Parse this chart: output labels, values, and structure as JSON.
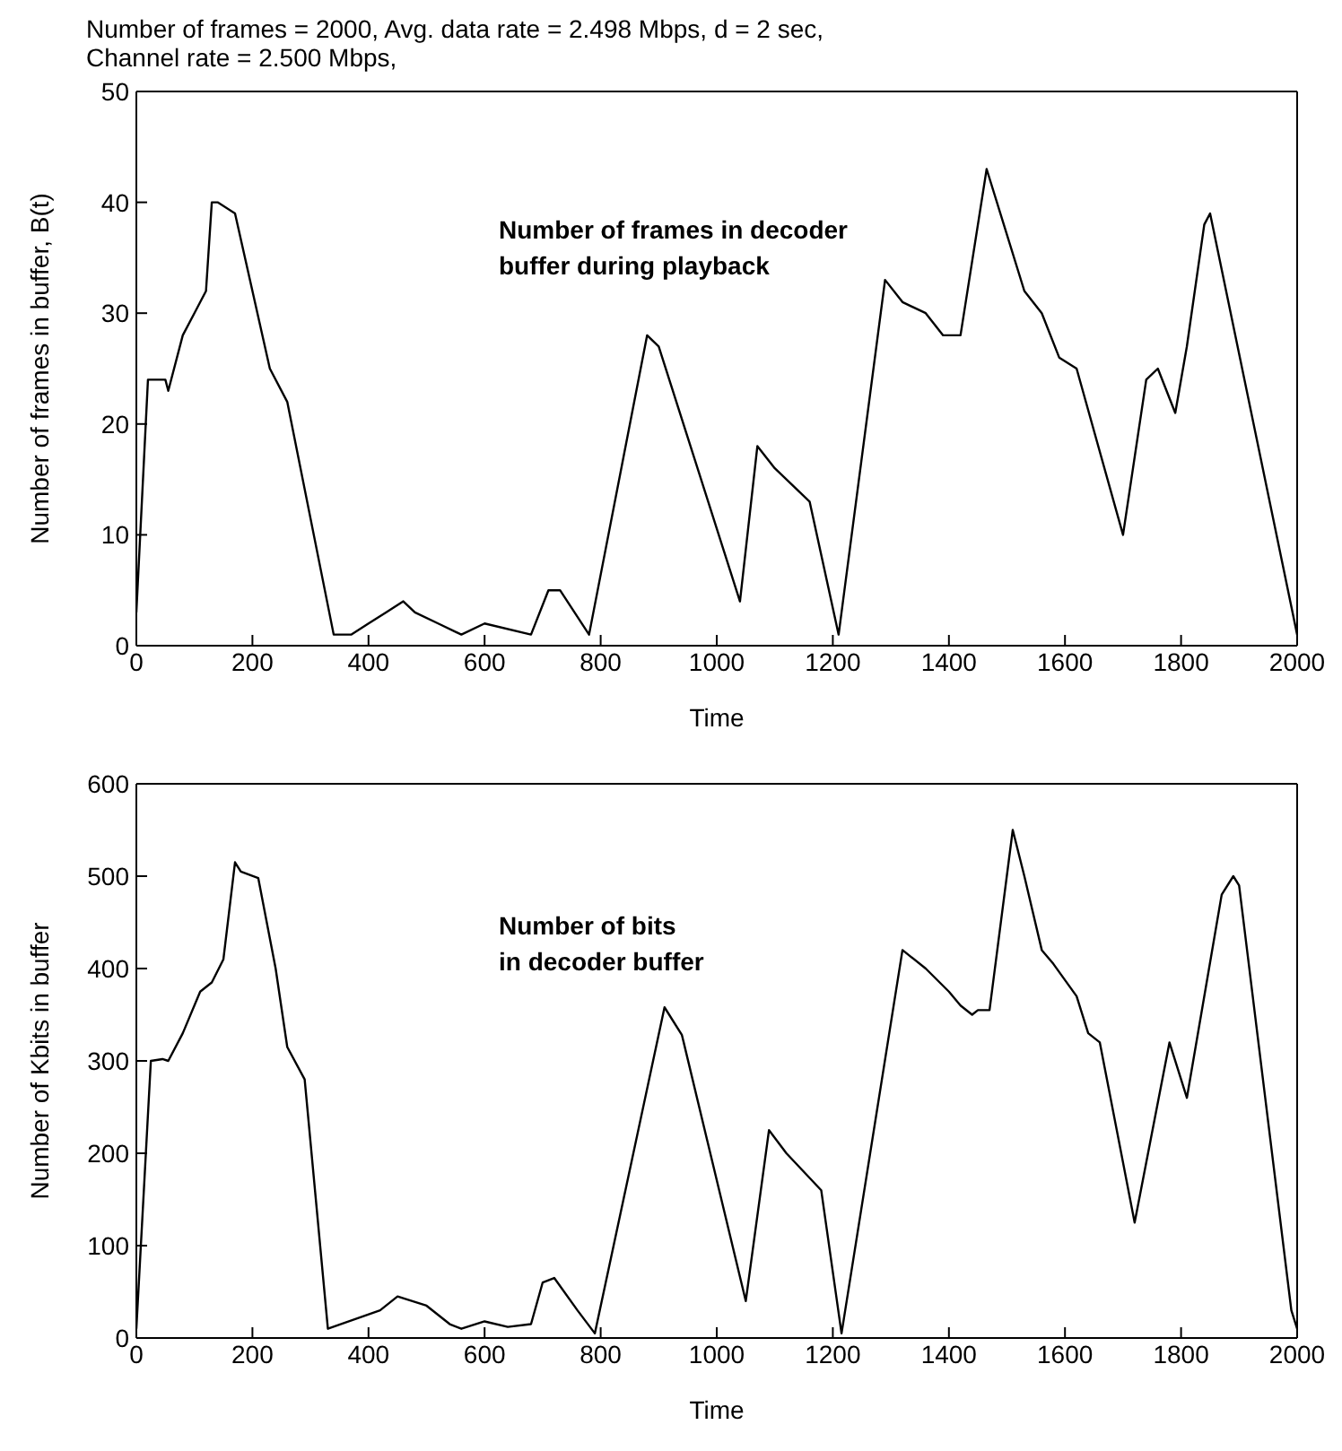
{
  "chart_data": [
    {
      "type": "line",
      "title": "Number of frames = 2000, Avg. data rate = 2.498 Mbps, d = 2 sec,",
      "subtitle": "Channel rate = 2.500 Mbps,",
      "xlabel": "Time",
      "ylabel": "Number of frames in buffer, B(t)",
      "annotations": [
        "Number of frames in decoder\nbuffer during playback"
      ],
      "grid": false,
      "legend": false,
      "marker": "none",
      "line_style": "solid",
      "x": [
        0,
        20,
        50,
        55,
        80,
        100,
        120,
        130,
        140,
        170,
        230,
        260,
        340,
        370,
        400,
        430,
        460,
        480,
        520,
        560,
        600,
        680,
        710,
        730,
        780,
        880,
        900,
        1040,
        1070,
        1100,
        1160,
        1210,
        1290,
        1320,
        1360,
        1390,
        1420,
        1465,
        1530,
        1560,
        1590,
        1620,
        1700,
        1740,
        1760,
        1790,
        1810,
        1840,
        1850,
        2000
      ],
      "series": [
        {
          "color": "#000000",
          "values": [
            3,
            24,
            24,
            23,
            28,
            30,
            32,
            40,
            40,
            39,
            25,
            22,
            1,
            1,
            2,
            3,
            4,
            3,
            2,
            1,
            2,
            1,
            5,
            5,
            1,
            28,
            27,
            4,
            18,
            16,
            13,
            1,
            33,
            31,
            30,
            28,
            28,
            43,
            32,
            30,
            26,
            25,
            10,
            24,
            25,
            21,
            27,
            38,
            39,
            1
          ]
        }
      ],
      "xlim": [
        0,
        2000
      ],
      "xticks": [
        0,
        200,
        400,
        600,
        800,
        1000,
        1200,
        1400,
        1600,
        1800,
        2000
      ],
      "ylim": [
        0,
        50
      ],
      "yticks": [
        0,
        10,
        20,
        30,
        40,
        50
      ]
    },
    {
      "type": "line",
      "xlabel": "Time",
      "ylabel": "Number of Kbits in buffer",
      "annotations": [
        "Number of bits\nin decoder buffer"
      ],
      "grid": false,
      "legend": false,
      "marker": "none",
      "line_style": "solid",
      "x": [
        0,
        25,
        45,
        55,
        80,
        110,
        130,
        150,
        170,
        180,
        210,
        240,
        260,
        290,
        330,
        420,
        450,
        500,
        540,
        560,
        600,
        640,
        680,
        700,
        720,
        760,
        790,
        910,
        940,
        1050,
        1090,
        1120,
        1180,
        1215,
        1320,
        1360,
        1400,
        1420,
        1440,
        1450,
        1470,
        1510,
        1530,
        1560,
        1580,
        1620,
        1640,
        1660,
        1720,
        1780,
        1810,
        1870,
        1890,
        1900,
        1990,
        2000
      ],
      "series": [
        {
          "color": "#000000",
          "values": [
            10,
            300,
            302,
            300,
            330,
            375,
            385,
            410,
            515,
            505,
            498,
            400,
            315,
            280,
            10,
            30,
            45,
            35,
            15,
            10,
            18,
            12,
            15,
            60,
            65,
            30,
            5,
            358,
            328,
            40,
            225,
            200,
            160,
            5,
            420,
            400,
            375,
            360,
            350,
            355,
            355,
            550,
            500,
            420,
            405,
            370,
            330,
            320,
            125,
            320,
            260,
            480,
            500,
            490,
            30,
            10
          ]
        }
      ],
      "xlim": [
        0,
        2000
      ],
      "xticks": [
        0,
        200,
        400,
        600,
        800,
        1000,
        1200,
        1400,
        1600,
        1800,
        2000
      ],
      "ylim": [
        0,
        600
      ],
      "yticks": [
        0,
        100,
        200,
        300,
        400,
        500,
        600
      ]
    }
  ]
}
